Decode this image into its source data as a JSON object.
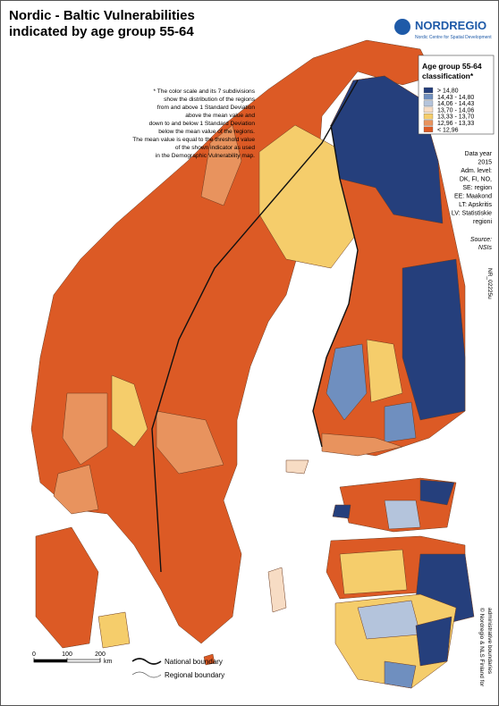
{
  "title": [
    "Nordic - Baltic Vulnerabilities",
    "indicated by age group 55-64"
  ],
  "logo": {
    "name": "NORDREGIO",
    "subtitle": "Nordic Centre for Spatial Development"
  },
  "note": [
    "* The color scale and its 7 subdivisions",
    "show the distribution of the regions",
    "from and above 1 Standard Deviation",
    "above the mean value and",
    "down to and below 1 Standard Deviation",
    "below the mean value of the regions.",
    "The mean value is equal to the threshold value",
    "of the shown indicator as used",
    "in the Demographic Vulnerability map."
  ],
  "legend": {
    "title": [
      "Age group 55-64",
      "classification*"
    ],
    "items": [
      {
        "label": "> 14,80",
        "color": "#253f7c"
      },
      {
        "label": "14,43 - 14,80",
        "color": "#6f8fbf"
      },
      {
        "label": "14,06 - 14,43",
        "color": "#b4c4dc"
      },
      {
        "label": "13,70 - 14,06",
        "color": "#f7dcc4"
      },
      {
        "label": "13,33 - 13,70",
        "color": "#f5cd6b"
      },
      {
        "label": "12,96 - 13,33",
        "color": "#e8935e"
      },
      {
        "label": "< 12,96",
        "color": "#dc5a25"
      }
    ]
  },
  "metadata": [
    "Data year",
    "2015",
    "Adm. level:",
    "DK, FI, NO,",
    "SE: region",
    "EE: Maakond",
    "LT: Apskritis",
    "LV: Statistiskie",
    "regioni"
  ],
  "source": [
    "Source:",
    "NSIs"
  ],
  "map_code": "NR_02225u",
  "copyright": [
    "© Nordregio & NLS Finland for",
    "administrative boundaries"
  ],
  "scale_bar": {
    "ticks": [
      0,
      100,
      200
    ],
    "unit": "km"
  },
  "boundaries": [
    "National boundary",
    "Regional boundary"
  ]
}
